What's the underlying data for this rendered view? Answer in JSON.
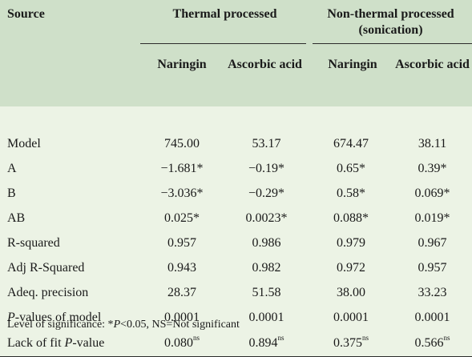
{
  "table": {
    "source_header": "Source",
    "group_headers": [
      "Thermal processed",
      "Non-thermal processed (sonication)"
    ],
    "sub_headers": [
      "Naringin",
      "Ascorbic acid",
      "Naringin",
      "Ascorbic acid"
    ],
    "rows": [
      {
        "label": "Model",
        "values": [
          "745.00",
          "53.17",
          "674.47",
          "38.11"
        ]
      },
      {
        "label": "A",
        "values": [
          "−1.681*",
          "−0.19*",
          "0.65*",
          "0.39*"
        ]
      },
      {
        "label": "B",
        "values": [
          "−3.036*",
          "−0.29*",
          "0.58*",
          "0.069*"
        ]
      },
      {
        "label": "AB",
        "values": [
          "0.025*",
          "0.0023*",
          "0.088*",
          "0.019*"
        ]
      },
      {
        "label": "R-squared",
        "values": [
          "0.957",
          "0.986",
          "0.979",
          "0.967"
        ]
      },
      {
        "label": "Adj R-Squared",
        "values": [
          "0.943",
          "0.982",
          "0.972",
          "0.957"
        ]
      },
      {
        "label": "Adeq. precision",
        "values": [
          "28.37",
          "51.58",
          "38.00",
          "33.23"
        ]
      },
      {
        "label_italic": "P",
        "label_rest": "-values of model",
        "values": [
          "0.0001",
          "0.0001",
          "0.0001",
          "0.0001"
        ]
      },
      {
        "label_pre": "Lack of fit ",
        "label_italic": "P",
        "label_rest": "-value",
        "values": [
          "0.080",
          "0.894",
          "0.375",
          "0.566"
        ],
        "sup": "ns"
      }
    ]
  },
  "footnote": {
    "pre": "Level of significance: *",
    "italic": "P",
    "post": "<0.05, NS=Not significant"
  }
}
